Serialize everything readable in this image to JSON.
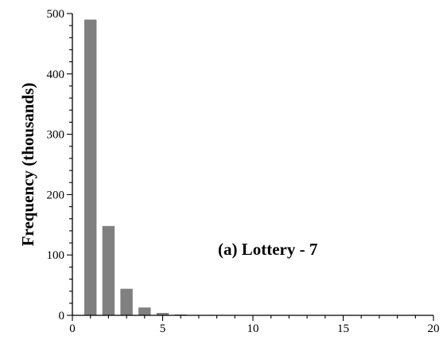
{
  "chart_data": {
    "type": "bar",
    "title": "",
    "xlabel": "",
    "ylabel": "Frequency (thousands)",
    "annotation": "(a) Lottery - 7",
    "xlim": [
      0,
      20
    ],
    "ylim": [
      0,
      500
    ],
    "xticks": [
      0,
      5,
      10,
      15,
      20
    ],
    "yticks": [
      0,
      100,
      200,
      300,
      400,
      500
    ],
    "x": [
      1,
      2,
      3,
      4,
      5,
      6,
      7,
      8,
      9,
      10,
      11,
      12
    ],
    "values": [
      490,
      148,
      44,
      13,
      4,
      1.5,
      0.6,
      0.3,
      0.15,
      0.1,
      0.05,
      0.03
    ],
    "bar_color": "#808080",
    "grid": false,
    "legend": "none"
  }
}
